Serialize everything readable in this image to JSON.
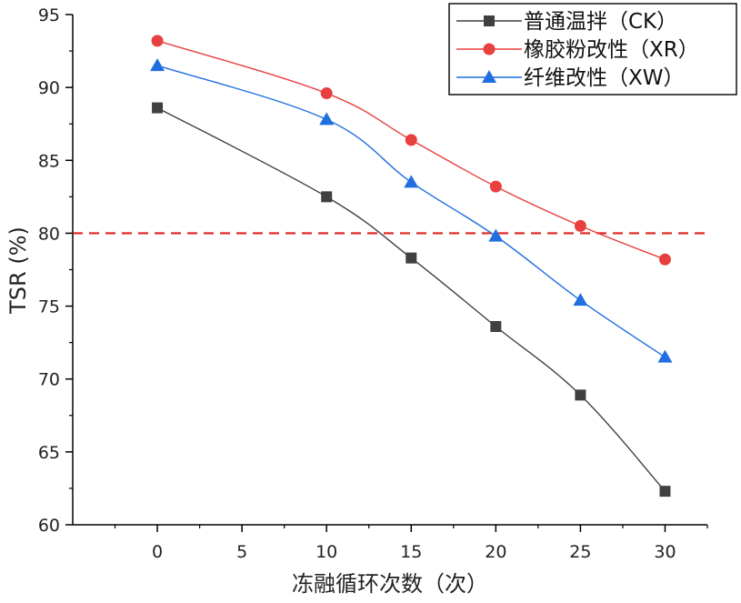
{
  "chart_data": {
    "type": "line",
    "title": "",
    "xlabel": "冻融循环次数（次）",
    "ylabel": "TSR (%)",
    "xlim": [
      -5,
      32.5
    ],
    "ylim": [
      60,
      95
    ],
    "x_ticks": [
      0,
      5,
      10,
      15,
      20,
      25,
      30
    ],
    "y_ticks": [
      60,
      65,
      70,
      75,
      80,
      85,
      90,
      95
    ],
    "x": [
      0,
      10,
      15,
      20,
      25,
      30
    ],
    "series": [
      {
        "name": "普通温拌（CK）",
        "marker": "square",
        "color": "#404040",
        "values": [
          88.6,
          82.5,
          78.3,
          73.6,
          68.9,
          62.3
        ]
      },
      {
        "name": "橡胶粉改性（XR）",
        "marker": "circle",
        "color": "#e8403f",
        "values": [
          93.2,
          89.6,
          86.4,
          83.2,
          80.5,
          78.2
        ]
      },
      {
        "name": "纤维改性（XW）",
        "marker": "triangle",
        "color": "#1f6fe0",
        "values": [
          91.5,
          87.8,
          83.5,
          79.8,
          75.4,
          71.5
        ]
      }
    ],
    "reference_line": {
      "value": 80,
      "style": "dashed",
      "color": "#e02020"
    },
    "legend_position": "top-right",
    "grid": false
  }
}
